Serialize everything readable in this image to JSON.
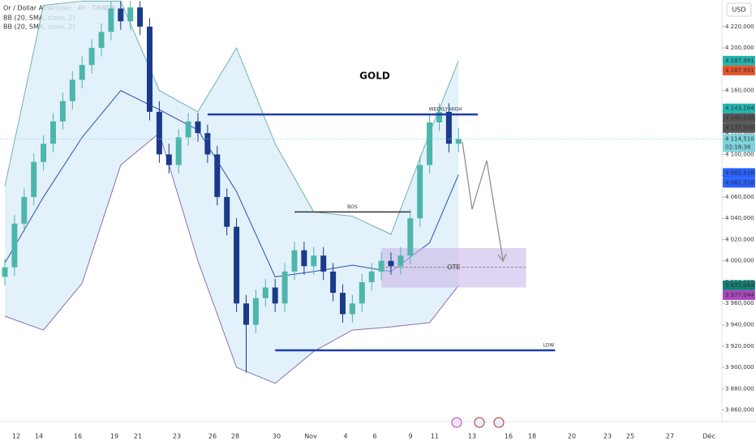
{
  "chart_data": {
    "type": "candlestick",
    "title": "GOLD",
    "symbol": "Or / Dollar Américain · 4h · OANDA",
    "currency": "USD",
    "up_color": "#4db6ac",
    "down_color": "#1a3a8a",
    "ylim": [
      3849,
      4245
    ],
    "yticks": [
      {
        "value": 3860,
        "label": "3 860,000"
      },
      {
        "value": 3880,
        "label": "3 880,000"
      },
      {
        "value": 3900,
        "label": "3 900,000"
      },
      {
        "value": 3920,
        "label": "3 920,000"
      },
      {
        "value": 3940,
        "label": "3 940,000"
      },
      {
        "value": 3960,
        "label": "3 960,000"
      },
      {
        "value": 3980,
        "label": "3 980,000"
      },
      {
        "value": 4000,
        "label": "4 000,000"
      },
      {
        "value": 4020,
        "label": "4 020,000"
      },
      {
        "value": 4040,
        "label": "4 040,000"
      },
      {
        "value": 4060,
        "label": "4 060,000"
      },
      {
        "value": 4080,
        "label": "4 080,000"
      },
      {
        "value": 4100,
        "label": "4 100,000"
      },
      {
        "value": 4120,
        "label": "4 120,000"
      },
      {
        "value": 4140,
        "label": "4 140,000"
      },
      {
        "value": 4160,
        "label": "4 160,000"
      },
      {
        "value": 4180,
        "label": "4 180,000"
      },
      {
        "value": 4200,
        "label": "4 200,000"
      },
      {
        "value": 4220,
        "label": "4 220,000"
      }
    ],
    "x_labels": [
      "12",
      "14",
      "16",
      "19",
      "21",
      "23",
      "26",
      "28",
      "30",
      "Nov",
      "4",
      "6",
      "9",
      "11",
      "13",
      "16",
      "18",
      "20",
      "23",
      "25",
      "27",
      "Déc"
    ],
    "candles": {
      "open": [
        3985,
        3994,
        4035,
        4060,
        4093,
        4110,
        4131,
        4150,
        4170,
        4184,
        4200,
        4215,
        4237,
        4225,
        4238,
        4220,
        4140,
        4100,
        4090,
        4116,
        4131,
        4120,
        4100,
        4060,
        4032,
        3960,
        3940,
        3965,
        3975,
        3960,
        3990,
        4010,
        3995,
        4005,
        3990,
        3970,
        3950,
        3960,
        3980,
        3990,
        4000,
        3995,
        4005,
        4040,
        4090,
        4130,
        4140,
        4110
      ],
      "high": [
        4002,
        4043,
        4068,
        4101,
        4118,
        4139,
        4158,
        4178,
        4192,
        4208,
        4223,
        4244,
        4244,
        4244,
        4244,
        4228,
        4150,
        4110,
        4124,
        4139,
        4139,
        4128,
        4108,
        4068,
        4040,
        3968,
        3973,
        3983,
        3983,
        3998,
        4018,
        4018,
        4013,
        4013,
        3998,
        3978,
        3968,
        3988,
        3998,
        4008,
        4008,
        4013,
        4048,
        4098,
        4138,
        4148,
        4148,
        4125
      ],
      "low": [
        3977,
        3986,
        4027,
        4052,
        4085,
        4102,
        4123,
        4142,
        4162,
        4176,
        4192,
        4207,
        4217,
        4217,
        4212,
        4132,
        4092,
        4082,
        4082,
        4108,
        4112,
        4092,
        4052,
        4024,
        3952,
        3895,
        3932,
        3957,
        3952,
        3952,
        3982,
        3987,
        3987,
        3982,
        3962,
        3942,
        3942,
        3952,
        3972,
        3982,
        3987,
        3987,
        3997,
        4032,
        4082,
        4122,
        4102,
        4102
      ],
      "close": [
        3994,
        4035,
        4060,
        4093,
        4110,
        4131,
        4150,
        4170,
        4184,
        4200,
        4215,
        4237,
        4225,
        4238,
        4220,
        4140,
        4100,
        4090,
        4116,
        4131,
        4120,
        4100,
        4060,
        4032,
        3960,
        3940,
        3965,
        3975,
        3960,
        3990,
        4010,
        3995,
        4005,
        3990,
        3970,
        3950,
        3960,
        3980,
        3990,
        4000,
        3995,
        4005,
        4040,
        4090,
        4130,
        4140,
        4110,
        4114.51
      ]
    },
    "bands": {
      "legend": [
        "BB (20, SMA, close, 2)",
        "BB (20, SMA, close, 2)"
      ],
      "x": [
        0,
        4,
        8,
        12,
        16,
        20,
        24,
        28,
        32,
        36,
        40,
        44,
        47
      ],
      "series": [
        {
          "color": "#6fb3a8",
          "values": [
            4070,
            4240,
            4244,
            4244,
            4160,
            4140,
            4200,
            4110,
            4046,
            4042,
            4025,
            4120,
            4188
          ]
        },
        {
          "color": "#2f4fb0",
          "values": [
            3998,
            4060,
            4116,
            4160,
            4142,
            4123,
            4065,
            3985,
            3990,
            3996,
            3990,
            4017,
            4081
          ]
        },
        {
          "color": "#8a6fb0",
          "values": [
            3948,
            3935,
            3979,
            4090,
            4120,
            4000,
            3900,
            3885,
            3915,
            3935,
            3938,
            3942,
            3977
          ]
        }
      ],
      "fill": "#dceefa"
    },
    "annotations": [
      {
        "text": "WEEKLY HIGH",
        "value": 4137.5,
        "x": [
          21,
          49
        ],
        "color": "#1f3fa8"
      },
      {
        "text": "BOS",
        "value": 4046,
        "x": [
          30,
          42
        ],
        "color": "#333333"
      },
      {
        "text": "LOW",
        "value": 3916,
        "x": [
          28,
          57
        ],
        "color": "#1f3fa8"
      }
    ],
    "zone": {
      "text": "OTE",
      "top": 4012,
      "bottom": 3975,
      "mid": 3994,
      "x": [
        39,
        54
      ],
      "color": "#c9b8e8"
    },
    "price_tags": [
      {
        "value": 4187.991,
        "label": "4 187,991",
        "color": "#22b5b0"
      },
      {
        "value": 4187.991,
        "label": "4 187,991",
        "color": "#e8552a"
      },
      {
        "value": 4143.164,
        "label": "4 143,164",
        "color": "#22b5b0"
      },
      {
        "value": 4140.035,
        "label": "4 140,035",
        "color": "#555555"
      },
      {
        "value": 4137.546,
        "label": "4 137,546",
        "color": "#555555"
      },
      {
        "value": 4114.51,
        "label": "4 114,510",
        "color": "#7fd3dc",
        "time": "02:16:38"
      },
      {
        "value": 4082.518,
        "label": "4 082,518",
        "color": "#2962ff"
      },
      {
        "value": 4082.518,
        "label": "4 082,518",
        "color": "#2962ff"
      },
      {
        "value": 3977.044,
        "label": "3 977,044",
        "color": "#137f73"
      },
      {
        "value": 3977.044,
        "label": "3 977,044",
        "color": "#ab47bc"
      }
    ]
  }
}
